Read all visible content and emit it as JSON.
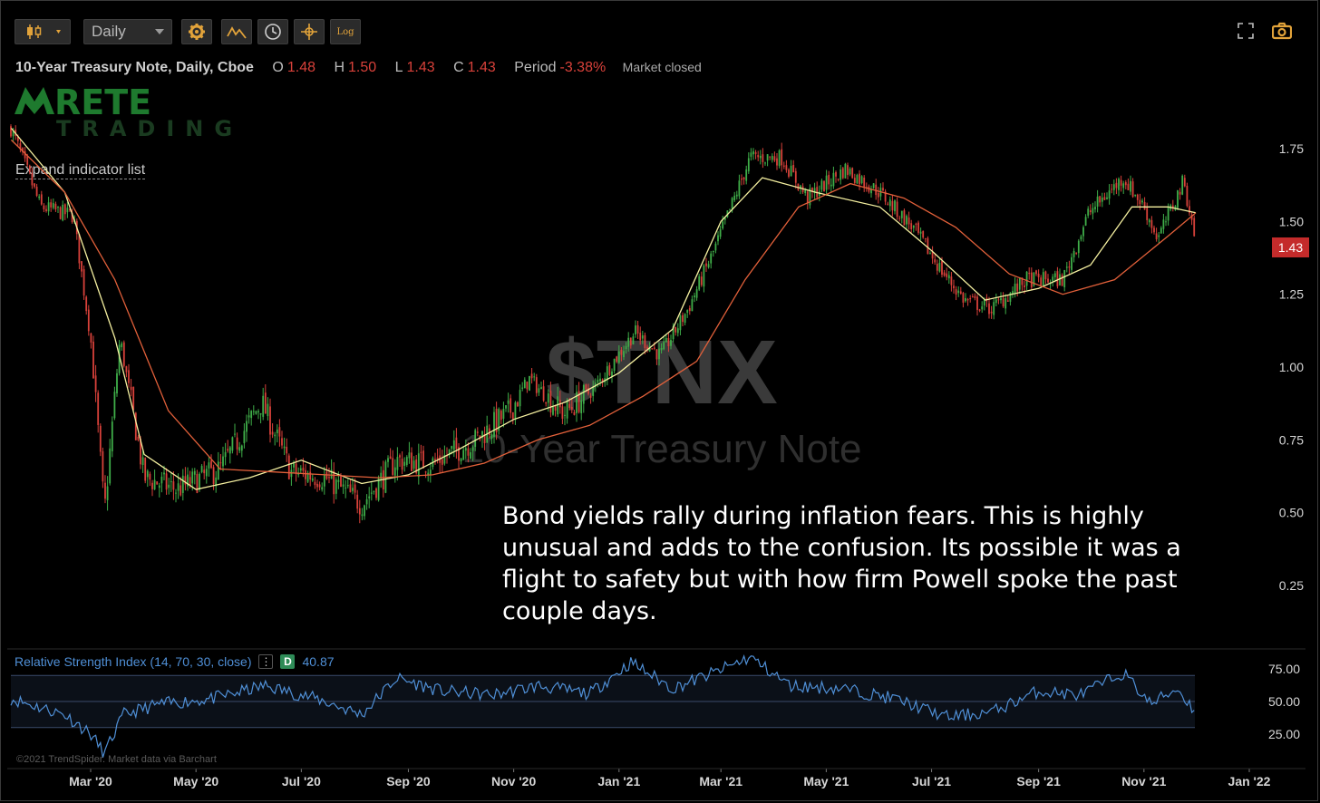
{
  "toolbar": {
    "chart_type_icon": "candlestick-icon",
    "timeframe": "Daily",
    "buttons": [
      "gear-icon",
      "indicator-icon",
      "clock-icon",
      "crosshair-icon",
      "log-scale-icon"
    ],
    "log_label": "Log",
    "right_buttons": [
      "fullscreen-icon",
      "camera-icon"
    ]
  },
  "legend": {
    "symbol_label": "10-Year Treasury Note, Daily, Cboe",
    "open_label": "O",
    "open": "1.48",
    "high_label": "H",
    "high": "1.50",
    "low_label": "L",
    "low": "1.43",
    "close_label": "C",
    "close": "1.43",
    "period_label": "Period",
    "period_change": "-3.38%",
    "market_status": "Market closed"
  },
  "logo": {
    "text": "RETE",
    "subtext": "TRADING"
  },
  "expand_indicator_list": "Expand indicator list",
  "watermark": {
    "ticker": "$TNX",
    "name": "10-Year Treasury Note"
  },
  "annotation": "Bond yields rally during inflation fears. This is highly unusual and adds to the confusion. Its possible it was a flight to safety but with how firm Powell spoke the past couple days.",
  "last_price_tag": "1.43",
  "rsi": {
    "title": "Relative Strength Index (14, 70, 30, close)",
    "menu_icon": "more-vertical-icon",
    "badge": "D",
    "value": "40.87"
  },
  "credit": "©2021 TrendSpider. Market data via Barchart",
  "colors": {
    "up": "#3fae49",
    "down": "#d8413a",
    "fast_ma": "#f5f0a0",
    "slow_ma": "#e2603a",
    "rsi_line": "#4f8fd6",
    "price_tag": "#c42b2b",
    "logo_green": "#1e7a2e"
  },
  "chart_data": [
    {
      "type": "candlestick",
      "title": "10-Year Treasury Note, Daily, Cboe",
      "x_tick_labels": [
        "Mar '20",
        "May '20",
        "Jul '20",
        "Sep '20",
        "Nov '20",
        "Jan '21",
        "Mar '21",
        "May '21",
        "Jul '21",
        "Sep '21",
        "Nov '21",
        "Jan '22"
      ],
      "y_tick_labels": [
        "1.75",
        "1.50",
        "1.25",
        "1.00",
        "0.75",
        "0.50",
        "0.25"
      ],
      "ylim": [
        0.0,
        2.0
      ],
      "series": [
        {
          "name": "close",
          "x": [
            "2020-01-15",
            "2020-02-01",
            "2020-02-20",
            "2020-03-01",
            "2020-03-09",
            "2020-03-18",
            "2020-04-01",
            "2020-04-20",
            "2020-05-15",
            "2020-06-08",
            "2020-06-25",
            "2020-07-15",
            "2020-08-05",
            "2020-08-25",
            "2020-09-15",
            "2020-10-10",
            "2020-10-30",
            "2020-11-10",
            "2020-11-30",
            "2020-12-18",
            "2021-01-10",
            "2021-01-25",
            "2021-02-10",
            "2021-02-25",
            "2021-03-18",
            "2021-04-05",
            "2021-04-20",
            "2021-05-12",
            "2021-06-01",
            "2021-06-20",
            "2021-07-07",
            "2021-07-20",
            "2021-08-05",
            "2021-08-25",
            "2021-09-15",
            "2021-09-30",
            "2021-10-20",
            "2021-11-01",
            "2021-11-09",
            "2021-11-24",
            "2021-12-01"
          ],
          "values": [
            1.82,
            1.55,
            1.52,
            1.1,
            0.5,
            1.1,
            0.62,
            0.58,
            0.65,
            0.88,
            0.64,
            0.62,
            0.53,
            0.68,
            0.67,
            0.75,
            0.85,
            0.96,
            0.84,
            0.93,
            1.12,
            1.04,
            1.2,
            1.4,
            1.72,
            1.72,
            1.58,
            1.68,
            1.6,
            1.48,
            1.33,
            1.23,
            1.2,
            1.3,
            1.3,
            1.53,
            1.65,
            1.55,
            1.44,
            1.64,
            1.43
          ]
        },
        {
          "name": "fast moving average",
          "x": [
            "2020-01-15",
            "2020-02-15",
            "2020-03-15",
            "2020-04-01",
            "2020-05-01",
            "2020-06-01",
            "2020-07-01",
            "2020-08-05",
            "2020-09-01",
            "2020-10-01",
            "2020-11-01",
            "2020-12-01",
            "2021-01-01",
            "2021-02-01",
            "2021-03-01",
            "2021-03-25",
            "2021-04-25",
            "2021-06-01",
            "2021-07-01",
            "2021-08-01",
            "2021-09-01",
            "2021-10-01",
            "2021-10-25",
            "2021-11-15",
            "2021-12-01"
          ],
          "values": [
            1.82,
            1.6,
            1.1,
            0.7,
            0.58,
            0.62,
            0.68,
            0.6,
            0.63,
            0.72,
            0.82,
            0.88,
            0.98,
            1.13,
            1.5,
            1.65,
            1.6,
            1.55,
            1.4,
            1.23,
            1.27,
            1.35,
            1.55,
            1.55,
            1.53
          ]
        },
        {
          "name": "slow moving average",
          "x": [
            "2020-01-15",
            "2020-02-15",
            "2020-03-15",
            "2020-04-15",
            "2020-05-15",
            "2020-06-15",
            "2020-07-15",
            "2020-08-15",
            "2020-09-15",
            "2020-10-15",
            "2020-11-15",
            "2020-12-15",
            "2021-01-15",
            "2021-02-15",
            "2021-03-15",
            "2021-04-15",
            "2021-05-15",
            "2021-06-15",
            "2021-07-15",
            "2021-08-15",
            "2021-09-15",
            "2021-10-15",
            "2021-11-15",
            "2021-12-01"
          ],
          "values": [
            1.78,
            1.6,
            1.3,
            0.85,
            0.65,
            0.64,
            0.63,
            0.62,
            0.63,
            0.67,
            0.75,
            0.8,
            0.9,
            1.02,
            1.3,
            1.55,
            1.63,
            1.58,
            1.48,
            1.32,
            1.25,
            1.3,
            1.45,
            1.53
          ]
        }
      ]
    },
    {
      "type": "line",
      "title": "Relative Strength Index (14, 70, 30, close)",
      "y_tick_labels": [
        "75.00",
        "50.00",
        "25.00"
      ],
      "ylim": [
        0,
        100
      ],
      "reference_lines": [
        70,
        50,
        30
      ],
      "series": [
        {
          "name": "RSI",
          "x": [
            "2020-01-15",
            "2020-02-15",
            "2020-03-01",
            "2020-03-09",
            "2020-03-20",
            "2020-04-10",
            "2020-05-10",
            "2020-06-10",
            "2020-07-10",
            "2020-08-05",
            "2020-08-25",
            "2020-09-20",
            "2020-10-20",
            "2020-11-15",
            "2020-12-15",
            "2021-01-08",
            "2021-02-01",
            "2021-02-25",
            "2021-03-18",
            "2021-04-10",
            "2021-05-10",
            "2021-06-10",
            "2021-07-10",
            "2021-08-05",
            "2021-09-01",
            "2021-09-25",
            "2021-10-20",
            "2021-11-05",
            "2021-11-20",
            "2021-12-01"
          ],
          "values": [
            52,
            40,
            25,
            10,
            40,
            48,
            52,
            62,
            52,
            40,
            68,
            58,
            55,
            62,
            56,
            80,
            60,
            72,
            84,
            62,
            60,
            52,
            38,
            42,
            58,
            55,
            72,
            48,
            60,
            42
          ]
        }
      ]
    }
  ]
}
